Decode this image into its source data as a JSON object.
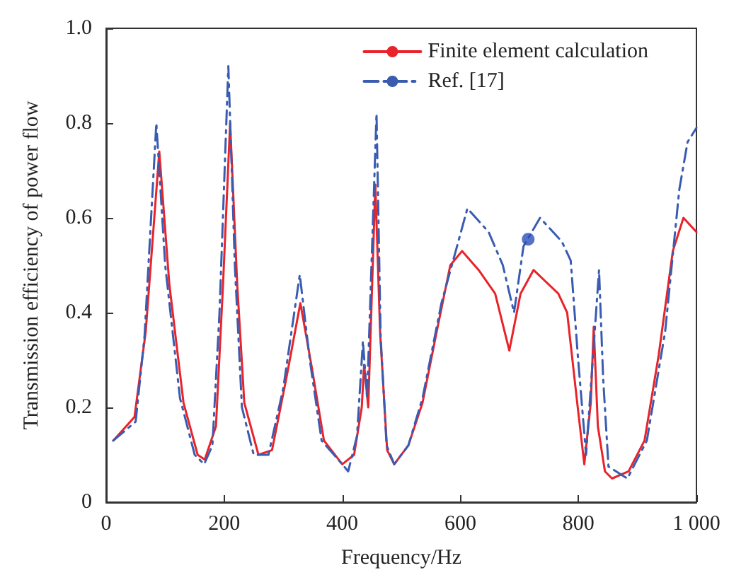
{
  "chart_data": {
    "type": "line",
    "xlabel": "Frequency/Hz",
    "ylabel": "Transmission efficiency of power flow",
    "xlim": [
      0,
      1000
    ],
    "xticks": [
      0,
      200,
      400,
      600,
      800,
      {
        "value": 1000,
        "label": "1 000"
      }
    ],
    "ylim": [
      0,
      1
    ],
    "yticks": [
      0,
      0.2,
      0.4,
      0.6,
      0.8,
      {
        "value": 1,
        "label": "1.0"
      }
    ],
    "grid": false,
    "legend": "top right",
    "marker": "none",
    "series": [
      {
        "name": "Finite element calculation",
        "color": "#e8232a",
        "line_style": "solid",
        "x": [
          12,
          48,
          67,
          90,
          107,
          131,
          155,
          167,
          186,
          198,
          210,
          222,
          234,
          258,
          281,
          305,
          329,
          349,
          369,
          400,
          420,
          433,
          437,
          444,
          456,
          464,
          476,
          488,
          512,
          536,
          560,
          583,
          603,
          631,
          659,
          683,
          702,
          724,
          766,
          781,
          798,
          810,
          821,
          826,
          833,
          845,
          857,
          885,
          912,
          936,
          960,
          978,
          1000
        ],
        "values": [
          0.13,
          0.18,
          0.36,
          0.74,
          0.46,
          0.21,
          0.1,
          0.09,
          0.16,
          0.46,
          0.8,
          0.46,
          0.21,
          0.1,
          0.11,
          0.26,
          0.42,
          0.28,
          0.13,
          0.08,
          0.1,
          0.2,
          0.29,
          0.2,
          0.67,
          0.36,
          0.11,
          0.08,
          0.12,
          0.21,
          0.36,
          0.5,
          0.53,
          0.49,
          0.44,
          0.32,
          0.44,
          0.49,
          0.44,
          0.4,
          0.21,
          0.08,
          0.21,
          0.37,
          0.16,
          0.065,
          0.05,
          0.065,
          0.13,
          0.31,
          0.53,
          0.6,
          0.57
        ]
      },
      {
        "name": "Ref. [17]",
        "color": "#3a5cb0",
        "line_style": "dashed",
        "x": [
          12,
          50,
          65,
          85,
          100,
          125,
          150,
          166,
          180,
          192,
          207,
          218,
          230,
          250,
          275,
          300,
          328,
          345,
          365,
          400,
          410,
          425,
          435,
          442,
          458,
          465,
          475,
          488,
          512,
          536,
          568,
          612,
          648,
          672,
          691,
          707,
          735,
          772,
          787,
          799,
          813,
          835,
          842,
          851,
          883,
          916,
          947,
          971,
          985,
          1000
        ],
        "values": [
          0.13,
          0.17,
          0.35,
          0.8,
          0.5,
          0.22,
          0.1,
          0.08,
          0.12,
          0.4,
          0.92,
          0.5,
          0.2,
          0.1,
          0.1,
          0.24,
          0.48,
          0.3,
          0.13,
          0.08,
          0.065,
          0.14,
          0.34,
          0.22,
          0.82,
          0.35,
          0.12,
          0.08,
          0.12,
          0.22,
          0.42,
          0.62,
          0.57,
          0.5,
          0.4,
          0.54,
          0.6,
          0.55,
          0.51,
          0.31,
          0.1,
          0.49,
          0.26,
          0.075,
          0.05,
          0.13,
          0.36,
          0.66,
          0.76,
          0.79
        ]
      },
      {
        "type": "scatter",
        "color": "#2a4fb8",
        "marker": "circle",
        "x": [
          715
        ],
        "values": [
          0.555
        ]
      }
    ]
  }
}
